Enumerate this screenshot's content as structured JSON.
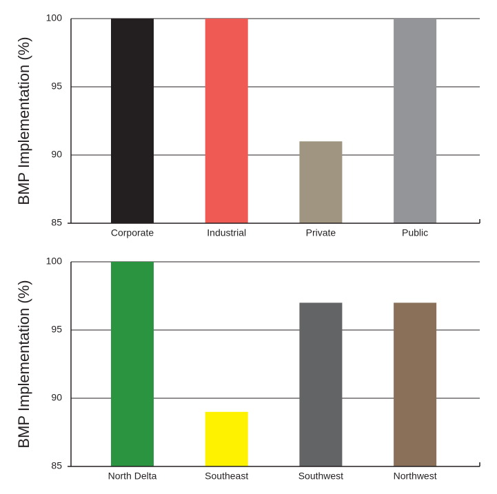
{
  "chart_data": [
    {
      "type": "bar",
      "y_label": "BMP Implementation (%)",
      "categories": [
        "Corporate",
        "Industrial",
        "Private",
        "Public"
      ],
      "values": [
        100,
        100,
        91,
        100
      ],
      "colors": [
        "#231f20",
        "#ef5a55",
        "#a09580",
        "#939598"
      ],
      "ylim": [
        85,
        100
      ],
      "yticks": [
        85,
        90,
        95,
        100
      ],
      "grid": true
    },
    {
      "type": "bar",
      "y_label": "BMP Implementation (%)",
      "categories": [
        "North Delta",
        "Southeast",
        "Southwest",
        "Northwest"
      ],
      "values": [
        100,
        89,
        97,
        97
      ],
      "colors": [
        "#2a9440",
        "#fff200",
        "#636466",
        "#8a7058"
      ],
      "ylim": [
        85,
        100
      ],
      "yticks": [
        85,
        90,
        95,
        100
      ],
      "grid": true
    }
  ]
}
